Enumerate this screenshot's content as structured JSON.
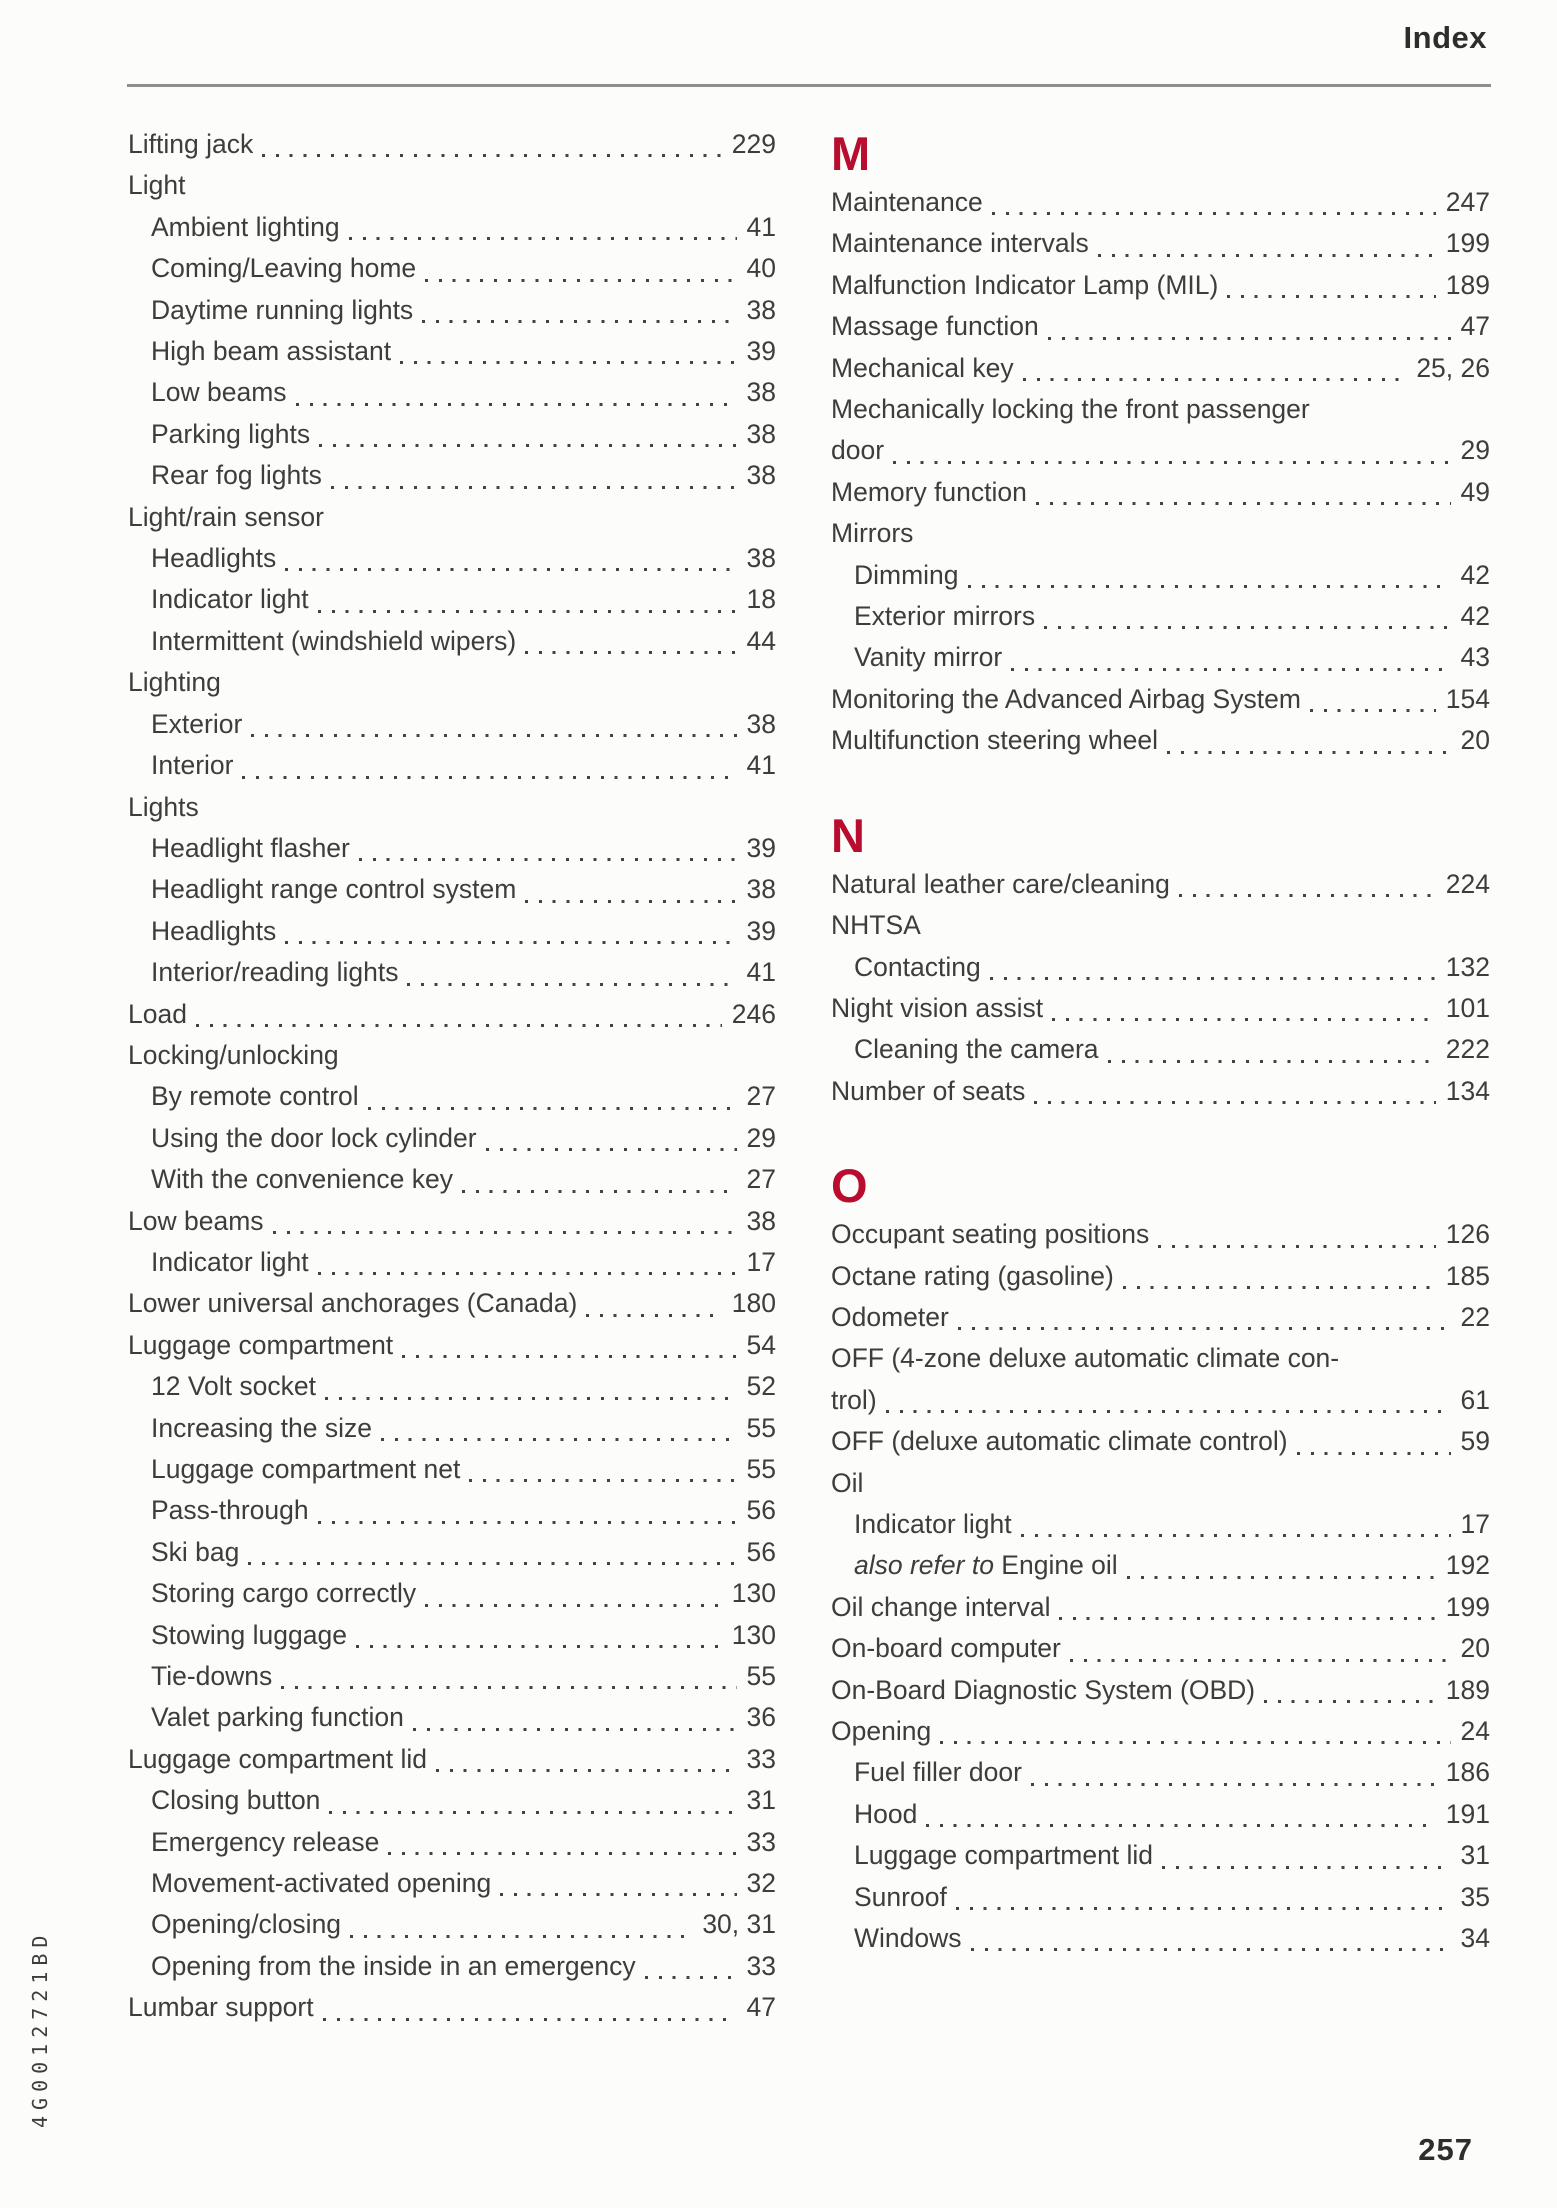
{
  "header": {
    "title": "Index"
  },
  "footer": {
    "page_number": "257",
    "spine_code": "4G0012721BD"
  },
  "accent_color": "#b80d2e",
  "columns": [
    {
      "name": "left",
      "sections": [
        {
          "letter": "",
          "entries": [
            {
              "label": "Lifting jack",
              "page": "229",
              "indent": 0
            },
            {
              "label": "Light",
              "page": "",
              "indent": 0
            },
            {
              "label": "Ambient lighting",
              "page": "41",
              "indent": 1
            },
            {
              "label": "Coming/Leaving home",
              "page": "40",
              "indent": 1
            },
            {
              "label": "Daytime running lights",
              "page": "38",
              "indent": 1
            },
            {
              "label": "High beam assistant",
              "page": "39",
              "indent": 1
            },
            {
              "label": "Low beams",
              "page": "38",
              "indent": 1
            },
            {
              "label": "Parking lights",
              "page": "38",
              "indent": 1
            },
            {
              "label": "Rear fog lights",
              "page": "38",
              "indent": 1
            },
            {
              "label": "Light/rain sensor",
              "page": "",
              "indent": 0
            },
            {
              "label": "Headlights",
              "page": "38",
              "indent": 1
            },
            {
              "label": "Indicator light",
              "page": "18",
              "indent": 1
            },
            {
              "label": "Intermittent (windshield wipers)",
              "page": "44",
              "indent": 1
            },
            {
              "label": "Lighting",
              "page": "",
              "indent": 0
            },
            {
              "label": "Exterior",
              "page": "38",
              "indent": 1
            },
            {
              "label": "Interior",
              "page": "41",
              "indent": 1
            },
            {
              "label": "Lights",
              "page": "",
              "indent": 0
            },
            {
              "label": "Headlight flasher",
              "page": "39",
              "indent": 1
            },
            {
              "label": "Headlight range control system",
              "page": "38",
              "indent": 1
            },
            {
              "label": "Headlights",
              "page": "39",
              "indent": 1
            },
            {
              "label": "Interior/reading lights",
              "page": "41",
              "indent": 1
            },
            {
              "label": "Load",
              "page": "246",
              "indent": 0
            },
            {
              "label": "Locking/unlocking",
              "page": "",
              "indent": 0
            },
            {
              "label": "By remote control",
              "page": "27",
              "indent": 1
            },
            {
              "label": "Using the door lock cylinder",
              "page": "29",
              "indent": 1
            },
            {
              "label": "With the convenience key",
              "page": "27",
              "indent": 1
            },
            {
              "label": "Low beams",
              "page": "38",
              "indent": 0
            },
            {
              "label": "Indicator light",
              "page": "17",
              "indent": 1
            },
            {
              "label": "Lower universal anchorages (Canada)",
              "page": "180",
              "indent": 0
            },
            {
              "label": "Luggage compartment",
              "page": "54",
              "indent": 0
            },
            {
              "label": "12 Volt socket",
              "page": "52",
              "indent": 1
            },
            {
              "label": "Increasing the size",
              "page": "55",
              "indent": 1
            },
            {
              "label": "Luggage compartment net",
              "page": "55",
              "indent": 1
            },
            {
              "label": "Pass-through",
              "page": "56",
              "indent": 1
            },
            {
              "label": "Ski bag",
              "page": "56",
              "indent": 1
            },
            {
              "label": "Storing cargo correctly",
              "page": "130",
              "indent": 1
            },
            {
              "label": "Stowing luggage",
              "page": "130",
              "indent": 1
            },
            {
              "label": "Tie-downs",
              "page": "55",
              "indent": 1
            },
            {
              "label": "Valet parking function",
              "page": "36",
              "indent": 1
            },
            {
              "label": "Luggage compartment lid",
              "page": "33",
              "indent": 0
            },
            {
              "label": "Closing button",
              "page": "31",
              "indent": 1
            },
            {
              "label": "Emergency release",
              "page": "33",
              "indent": 1
            },
            {
              "label": "Movement-activated opening",
              "page": "32",
              "indent": 1
            },
            {
              "label": "Opening/closing",
              "page": "30, 31",
              "indent": 1
            },
            {
              "label": "Opening from the inside in an emergency",
              "page": "33",
              "indent": 1
            },
            {
              "label": "Lumbar support",
              "page": "47",
              "indent": 0
            }
          ]
        }
      ]
    },
    {
      "name": "right",
      "sections": [
        {
          "letter": "M",
          "entries": [
            {
              "label": "Maintenance",
              "page": "247",
              "indent": 0
            },
            {
              "label": "Maintenance intervals",
              "page": "199",
              "indent": 0
            },
            {
              "label": "Malfunction Indicator Lamp (MIL)",
              "page": "189",
              "indent": 0
            },
            {
              "label": "Massage function",
              "page": "47",
              "indent": 0
            },
            {
              "label": "Mechanical key",
              "page": "25, 26",
              "indent": 0
            },
            {
              "label": "Mechanically locking the front passenger",
              "page": "",
              "indent": 0
            },
            {
              "label": "door",
              "page": "29",
              "indent": 0
            },
            {
              "label": "Memory function",
              "page": "49",
              "indent": 0
            },
            {
              "label": "Mirrors",
              "page": "",
              "indent": 0
            },
            {
              "label": "Dimming",
              "page": "42",
              "indent": 1
            },
            {
              "label": "Exterior mirrors",
              "page": "42",
              "indent": 1
            },
            {
              "label": "Vanity mirror",
              "page": "43",
              "indent": 1
            },
            {
              "label": "Monitoring the Advanced Airbag System",
              "page": "154",
              "indent": 0
            },
            {
              "label": "Multifunction steering wheel",
              "page": "20",
              "indent": 0
            }
          ]
        },
        {
          "letter": "N",
          "entries": [
            {
              "label": "Natural leather care/cleaning",
              "page": "224",
              "indent": 0
            },
            {
              "label": "NHTSA",
              "page": "",
              "indent": 0
            },
            {
              "label": "Contacting",
              "page": "132",
              "indent": 1
            },
            {
              "label": "Night vision assist",
              "page": "101",
              "indent": 0
            },
            {
              "label": "Cleaning the camera",
              "page": "222",
              "indent": 1
            },
            {
              "label": "Number of seats",
              "page": "134",
              "indent": 0
            }
          ]
        },
        {
          "letter": "O",
          "entries": [
            {
              "label": "Occupant seating positions",
              "page": "126",
              "indent": 0
            },
            {
              "label": "Octane rating (gasoline)",
              "page": "185",
              "indent": 0
            },
            {
              "label": "Odometer",
              "page": "22",
              "indent": 0
            },
            {
              "label": "OFF (4-zone deluxe automatic climate con-",
              "page": "",
              "indent": 0
            },
            {
              "label": "trol)",
              "page": "61",
              "indent": 0
            },
            {
              "label": "OFF (deluxe automatic climate control)",
              "page": "59",
              "indent": 0
            },
            {
              "label": "Oil",
              "page": "",
              "indent": 0
            },
            {
              "label": "Indicator light",
              "page": "17",
              "indent": 1
            },
            {
              "italic_prefix": "also refer to",
              "label": " Engine oil",
              "page": "192",
              "indent": 1
            },
            {
              "label": "Oil change interval",
              "page": "199",
              "indent": 0
            },
            {
              "label": "On-board computer",
              "page": "20",
              "indent": 0
            },
            {
              "label": "On-Board Diagnostic System (OBD)",
              "page": "189",
              "indent": 0
            },
            {
              "label": "Opening",
              "page": "24",
              "indent": 0
            },
            {
              "label": "Fuel filler door",
              "page": "186",
              "indent": 1
            },
            {
              "label": "Hood",
              "page": "191",
              "indent": 1
            },
            {
              "label": "Luggage compartment lid",
              "page": "31",
              "indent": 1
            },
            {
              "label": "Sunroof",
              "page": "35",
              "indent": 1
            },
            {
              "label": "Windows",
              "page": "34",
              "indent": 1
            }
          ]
        }
      ]
    }
  ]
}
